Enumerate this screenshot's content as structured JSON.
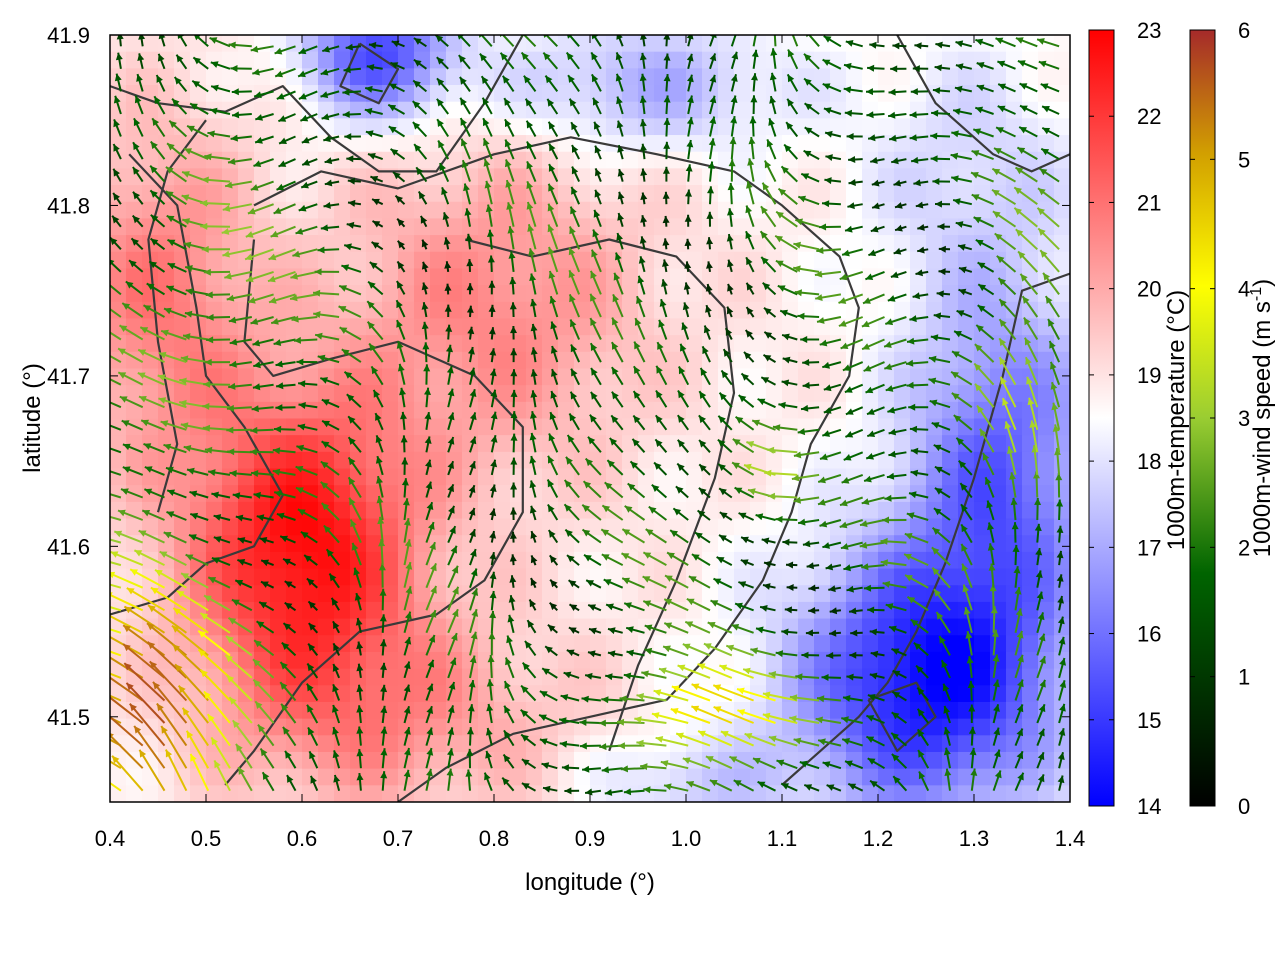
{
  "chart_data": {
    "type": "heatmap",
    "title": "",
    "xlabel": "longitude (°)",
    "ylabel": "latitude (°)",
    "xlim": [
      0.4,
      1.4
    ],
    "ylim": [
      41.45,
      41.9
    ],
    "xticks": [
      "0.4",
      "0.5",
      "0.6",
      "0.7",
      "0.8",
      "0.9",
      "1.0",
      "1.1",
      "1.2",
      "1.3",
      "1.4"
    ],
    "yticks": [
      "41.5",
      "41.6",
      "41.7",
      "41.8",
      "41.9"
    ],
    "grid": false,
    "overlay": "wind vectors colored by speed with terrain contour lines",
    "colorbars": [
      {
        "label": "1000m-temperature (°C)",
        "range": [
          14,
          23
        ],
        "ticks": [
          "14",
          "15",
          "16",
          "17",
          "18",
          "19",
          "20",
          "21",
          "22",
          "23"
        ],
        "colors": [
          "#0000ff",
          "#ffffff",
          "#ff0000"
        ]
      },
      {
        "label_main": "1000m-wind speed (m s",
        "label_sup": "-1",
        "label_end": ")",
        "range": [
          0,
          6
        ],
        "ticks": [
          "0",
          "1",
          "2",
          "3",
          "4",
          "5",
          "6"
        ],
        "colors": [
          "#000000",
          "#006400",
          "#9acd32",
          "#ffff00",
          "#d2a000",
          "#a52a2a"
        ]
      }
    ]
  }
}
